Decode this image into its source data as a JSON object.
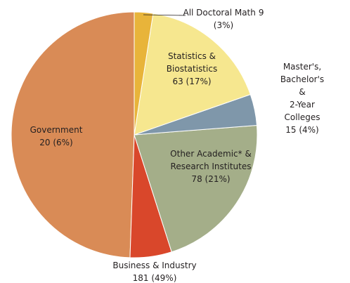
{
  "chart_data": {
    "type": "pie",
    "categories": [
      "All Doctoral Math",
      "Statistics &\nBiostatistics",
      "Master's, Bachelor's &\n2-Year Colleges",
      "Other Academic* &\nResearch Institutes",
      "Government",
      "Business & Industry"
    ],
    "values": [
      9,
      63,
      15,
      78,
      20,
      181
    ],
    "value_labels": [
      "9\n(3%)",
      "63 (17%)",
      "15 (4%)",
      "78 (21%)",
      "20 (6%)",
      "181 (49%)"
    ],
    "colors": [
      "#e8b43a",
      "#f6e78f",
      "#7f97aa",
      "#a4ae89",
      "#d9472b",
      "#d98b56"
    ]
  }
}
